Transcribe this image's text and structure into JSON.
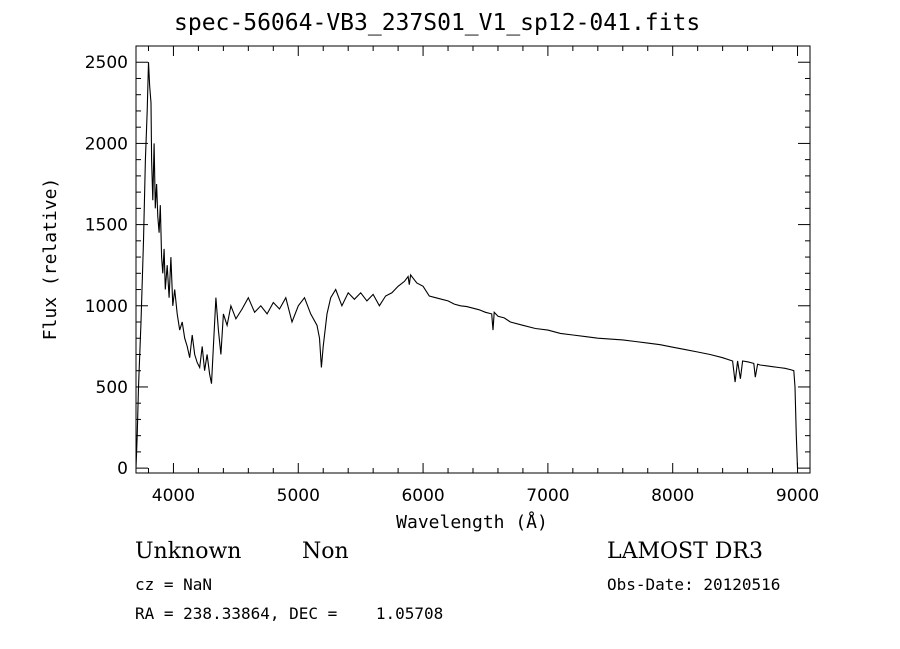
{
  "chart_data": {
    "type": "line",
    "title": "spec-56064-VB3_237S01_V1_sp12-041.fits",
    "xlabel": "Wavelength (Å)",
    "ylabel": "Flux (relative)",
    "xlim": [
      3700,
      9100
    ],
    "ylim": [
      -30,
      2600
    ],
    "xticks": [
      4000,
      5000,
      6000,
      7000,
      8000,
      9000
    ],
    "xtick_labels": [
      "4000",
      "5000",
      "6000",
      "7000",
      "8000",
      "9000"
    ],
    "yticks": [
      0,
      500,
      1000,
      1500,
      2000,
      2500
    ],
    "ytick_labels": [
      "0",
      "500",
      "1000",
      "1500",
      "2000",
      "2500"
    ],
    "grid": false,
    "series": [
      {
        "color": "#000000",
        "x": [
          3700,
          3710,
          3720,
          3740,
          3760,
          3775,
          3790,
          3800,
          3810,
          3820,
          3825,
          3835,
          3845,
          3855,
          3865,
          3875,
          3885,
          3895,
          3905,
          3915,
          3925,
          3935,
          3950,
          3965,
          3980,
          3995,
          4010,
          4030,
          4050,
          4070,
          4090,
          4110,
          4130,
          4150,
          4170,
          4190,
          4210,
          4230,
          4250,
          4270,
          4290,
          4305,
          4320,
          4340,
          4360,
          4380,
          4400,
          4430,
          4460,
          4500,
          4550,
          4600,
          4650,
          4700,
          4750,
          4800,
          4850,
          4900,
          4950,
          5000,
          5050,
          5100,
          5150,
          5170,
          5185,
          5200,
          5230,
          5260,
          5300,
          5350,
          5400,
          5450,
          5500,
          5550,
          5600,
          5650,
          5700,
          5750,
          5800,
          5850,
          5880,
          5890,
          5900,
          5920,
          5950,
          6000,
          6050,
          6100,
          6150,
          6200,
          6250,
          6300,
          6350,
          6400,
          6450,
          6500,
          6550,
          6560,
          6570,
          6600,
          6650,
          6700,
          6800,
          6900,
          7000,
          7100,
          7200,
          7300,
          7400,
          7500,
          7600,
          7700,
          7800,
          7900,
          8000,
          8100,
          8200,
          8300,
          8400,
          8480,
          8500,
          8520,
          8542,
          8560,
          8600,
          8650,
          8662,
          8680,
          8700,
          8750,
          8800,
          8850,
          8900,
          8950,
          8970,
          8980,
          8990,
          9000
        ],
        "y": [
          0,
          200,
          500,
          900,
          1400,
          1900,
          2200,
          2500,
          2350,
          2250,
          1900,
          1650,
          2000,
          1600,
          1750,
          1550,
          1450,
          1620,
          1300,
          1200,
          1350,
          1100,
          1250,
          1050,
          1300,
          1000,
          1100,
          950,
          850,
          900,
          800,
          750,
          680,
          820,
          700,
          650,
          620,
          750,
          600,
          700,
          580,
          520,
          750,
          1050,
          850,
          700,
          950,
          880,
          1000,
          920,
          980,
          1050,
          960,
          1000,
          950,
          1020,
          980,
          1050,
          900,
          1000,
          1050,
          950,
          880,
          800,
          620,
          750,
          950,
          1050,
          1100,
          1000,
          1080,
          1040,
          1080,
          1030,
          1070,
          1000,
          1060,
          1080,
          1120,
          1150,
          1180,
          1130,
          1190,
          1170,
          1140,
          1120,
          1060,
          1050,
          1040,
          1030,
          1010,
          1000,
          995,
          985,
          975,
          960,
          950,
          850,
          960,
          935,
          925,
          900,
          880,
          860,
          850,
          830,
          820,
          810,
          800,
          795,
          790,
          780,
          770,
          760,
          745,
          730,
          715,
          700,
          680,
          660,
          530,
          660,
          550,
          660,
          655,
          645,
          560,
          640,
          635,
          630,
          625,
          620,
          615,
          605,
          600,
          500,
          200,
          0
        ]
      }
    ]
  },
  "info": {
    "object_class": "Unknown",
    "object_subclass": "Non",
    "survey": "LAMOST DR3",
    "redshift": "cz = NaN",
    "obs_date": "Obs-Date: 20120516",
    "coords": "RA = 238.33864, DEC =    1.05708"
  }
}
